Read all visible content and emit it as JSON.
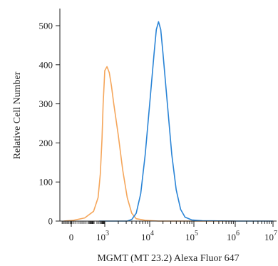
{
  "chart_data": {
    "type": "line",
    "xlabel": "MGMT (MT 23.2) Alexa Fluor 647",
    "ylabel": "Relative Cell Number",
    "x_scale": "biexponential",
    "xlim_decades": [
      0,
      7
    ],
    "ylim": [
      0,
      520
    ],
    "grid": false,
    "legend": "none",
    "x_ticks": [
      {
        "label": "0",
        "sup": ""
      },
      {
        "label": "10",
        "sup": "3"
      },
      {
        "label": "10",
        "sup": "4"
      },
      {
        "label": "10",
        "sup": "5"
      },
      {
        "label": "10",
        "sup": "6"
      },
      {
        "label": "10",
        "sup": "7"
      }
    ],
    "y_ticks": [
      "0",
      "100",
      "200",
      "300",
      "400",
      "500"
    ],
    "y_tick_values": [
      0,
      100,
      200,
      300,
      400,
      500
    ],
    "series": [
      {
        "color": "#f5a65b",
        "x_log10": [
          -1.0,
          0.2,
          1.2,
          2.0,
          2.4,
          2.6,
          2.75,
          2.85,
          2.95,
          3.0,
          3.05,
          3.1,
          3.15,
          3.2,
          3.3,
          3.4,
          3.5,
          3.6,
          3.7,
          3.9,
          4.2,
          5.0,
          6.0
        ],
        "y": [
          0,
          2,
          8,
          25,
          60,
          120,
          210,
          300,
          355,
          385,
          395,
          380,
          345,
          300,
          220,
          130,
          60,
          20,
          6,
          2,
          0,
          0,
          0
        ]
      },
      {
        "color": "#2a84d6",
        "x_log10": [
          2.5,
          3.5,
          3.6,
          3.7,
          3.8,
          3.9,
          4.0,
          4.1,
          4.15,
          4.2,
          4.25,
          4.3,
          4.4,
          4.5,
          4.6,
          4.7,
          4.8,
          4.95,
          5.2,
          6.0,
          7.0
        ],
        "y": [
          0,
          0,
          4,
          20,
          70,
          170,
          300,
          430,
          490,
          510,
          490,
          430,
          300,
          170,
          80,
          30,
          10,
          3,
          1,
          0,
          0
        ]
      }
    ]
  }
}
